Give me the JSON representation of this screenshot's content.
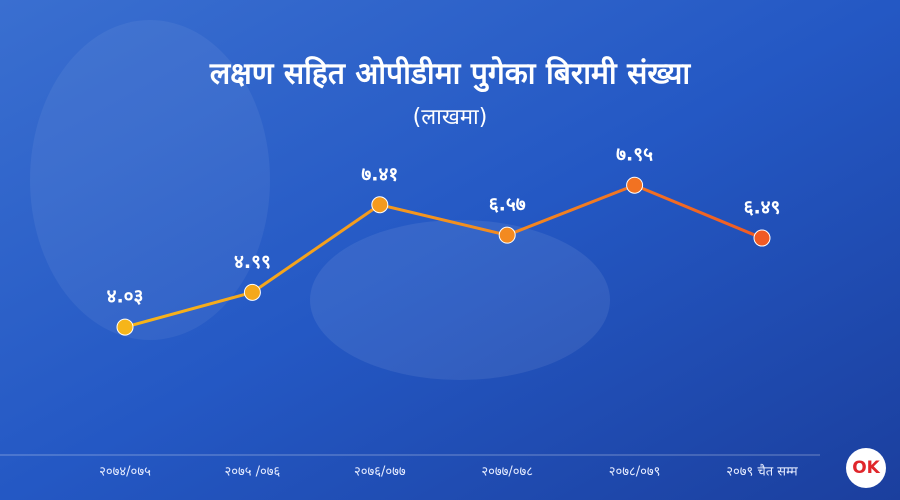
{
  "chart_data": {
    "type": "line",
    "title": "लक्षण सहित ओपीडीमा पुगेका बिरामी संख्या",
    "subtitle": "(लाखमा)",
    "categories": [
      "२०७४/०७५",
      "२०७५ /०७६",
      "२०७६/०७७",
      "२०७७/०७८",
      "२०७८/०७९",
      "२०७९ चैत सम्म"
    ],
    "values": [
      4.03,
      4.99,
      7.41,
      6.57,
      7.95,
      6.49
    ],
    "value_labels": [
      "४.०३",
      "४.९९",
      "७.४१",
      "६.५७",
      "७.९५",
      "६.४९"
    ],
    "colors": [
      "#f6b51a",
      "#f5a81c",
      "#f49a1e",
      "#f38a20",
      "#f27222",
      "#f05a24"
    ],
    "ylim": [
      0,
      10
    ],
    "logo": "OK"
  }
}
